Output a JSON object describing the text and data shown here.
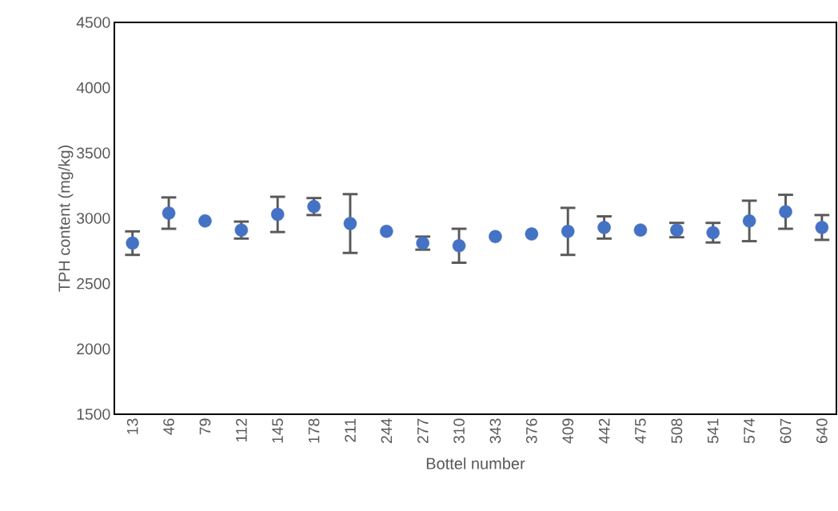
{
  "chart_data": {
    "type": "scatter",
    "xlabel": "Bottel number",
    "ylabel": "TPH content (mg/kg)",
    "categories": [
      "13",
      "46",
      "79",
      "112",
      "145",
      "178",
      "211",
      "244",
      "277",
      "310",
      "343",
      "376",
      "409",
      "442",
      "475",
      "508",
      "541",
      "574",
      "607",
      "640"
    ],
    "series": [
      {
        "color": "#4472c4",
        "values": [
          2810,
          3040,
          2980,
          2910,
          3030,
          3090,
          2960,
          2900,
          2810,
          2790,
          2860,
          2880,
          2900,
          2930,
          2910,
          2910,
          2890,
          2980,
          3050,
          2930
        ],
        "errors": [
          90,
          120,
          null,
          65,
          135,
          65,
          225,
          null,
          50,
          130,
          null,
          null,
          180,
          85,
          null,
          55,
          75,
          155,
          130,
          95
        ]
      }
    ],
    "ylim": [
      1500,
      4500
    ],
    "yticks": [
      1500,
      2000,
      2500,
      3000,
      3500,
      4000,
      4500
    ],
    "marker": "circle",
    "grid": false
  }
}
